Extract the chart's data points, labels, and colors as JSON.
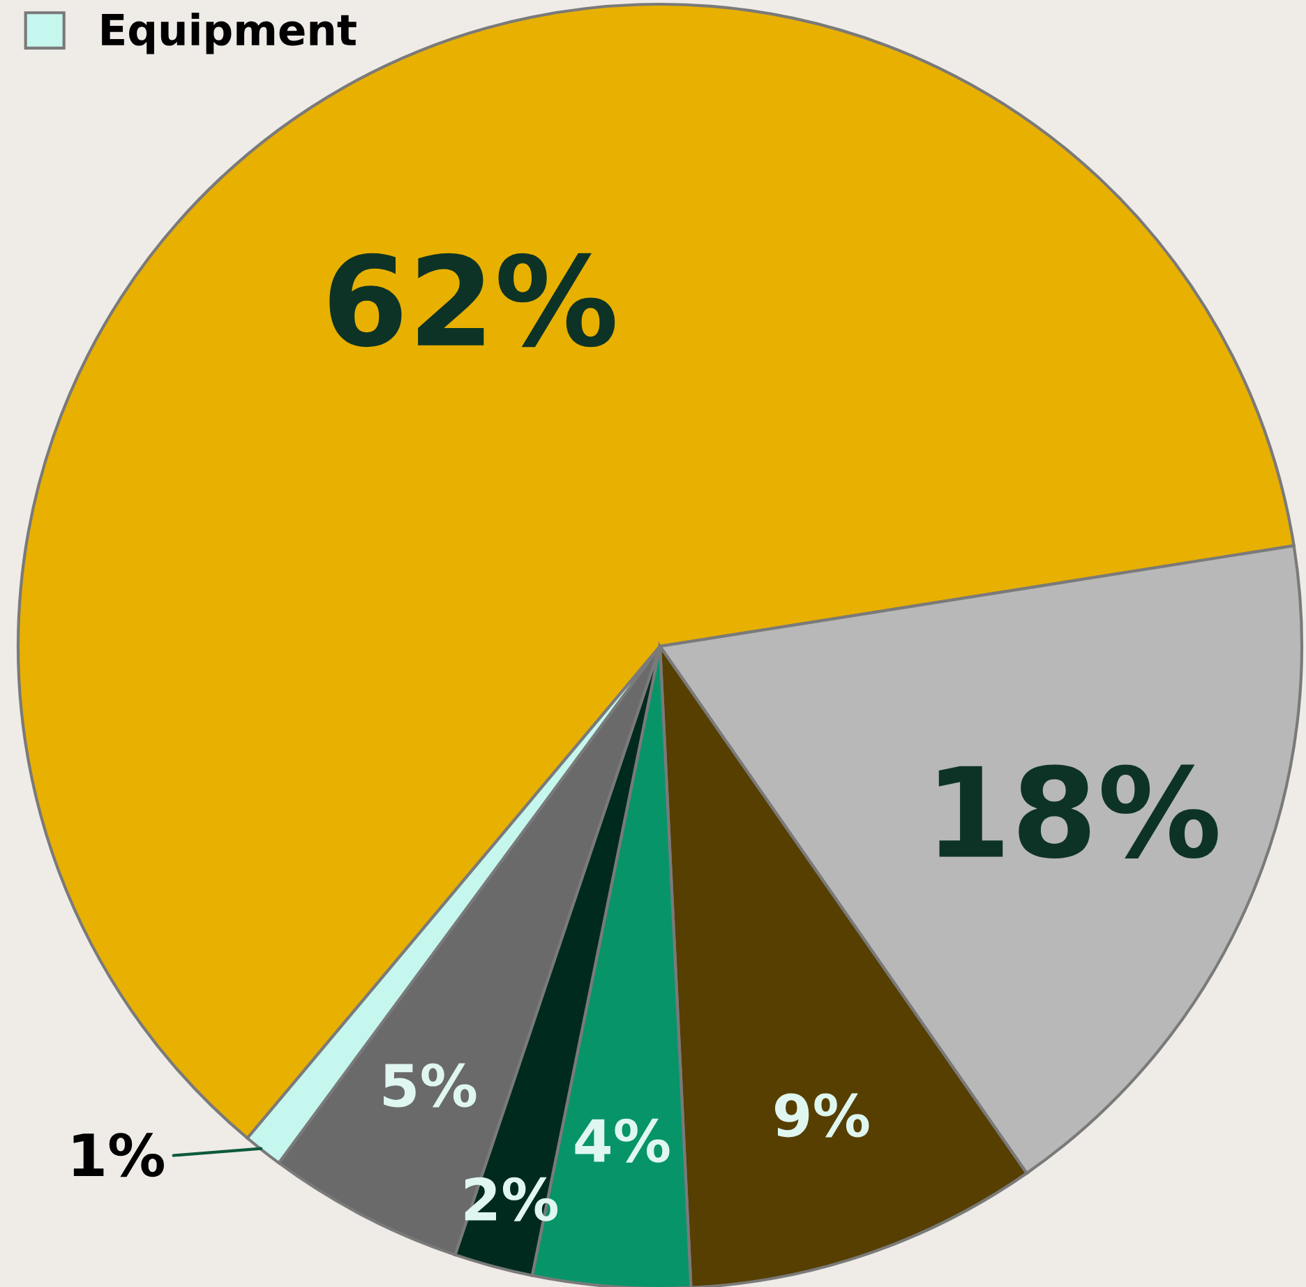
{
  "chart_data": {
    "type": "pie",
    "categories": [
      null,
      null,
      null,
      null,
      null,
      null,
      "Equipment"
    ],
    "values": [
      62,
      18,
      9,
      4,
      2,
      5,
      1
    ],
    "colors": [
      "#e8b000",
      "#b8b8b8",
      "#563f00",
      "#079469",
      "#002a1e",
      "#6a6a6a",
      "#c6f7ee"
    ],
    "value_labels": [
      "62%",
      "18%",
      "9%",
      "4%",
      "2%",
      "5%",
      "1%"
    ],
    "legend": "top left"
  }
}
